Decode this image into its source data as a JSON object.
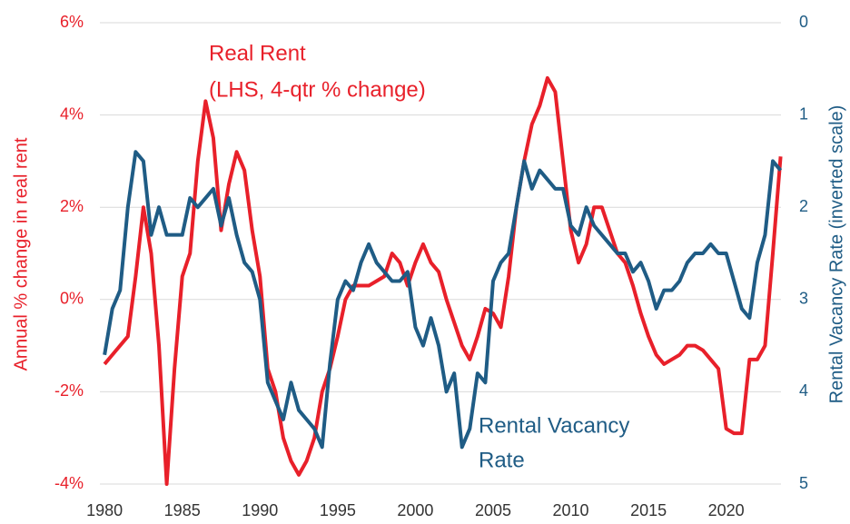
{
  "chart_data": {
    "type": "line",
    "annotations": [
      "Real Rent",
      "(LHS, 4-qtr % change)",
      "Rental Vacancy",
      "Rate"
    ],
    "ylabel": "Annual % change in real rent",
    "y2label": "Rental Vacancy Rate (inverted scale)",
    "x": [
      1980,
      1980.5,
      1981,
      1981.5,
      1982,
      1982.5,
      1983,
      1983.5,
      1984,
      1984.5,
      1985,
      1985.5,
      1986,
      1986.5,
      1987,
      1987.5,
      1988,
      1988.5,
      1989,
      1989.5,
      1990,
      1990.5,
      1991,
      1991.5,
      1992,
      1992.5,
      1993,
      1993.5,
      1994,
      1994.5,
      1995,
      1995.5,
      1996,
      1996.5,
      1997,
      1997.5,
      1998,
      1998.5,
      1999,
      1999.5,
      2000,
      2000.5,
      2001,
      2001.5,
      2002,
      2002.5,
      2003,
      2003.5,
      2004,
      2004.5,
      2005,
      2005.5,
      2006,
      2006.5,
      2007,
      2007.5,
      2008,
      2008.5,
      2009,
      2009.5,
      2010,
      2010.5,
      2011,
      2011.5,
      2012,
      2012.5,
      2013,
      2013.5,
      2014,
      2014.5,
      2015,
      2015.5,
      2016,
      2016.5,
      2017,
      2017.5,
      2018,
      2018.5,
      2019,
      2019.5,
      2020,
      2020.5,
      2021,
      2021.5,
      2022,
      2022.5,
      2023,
      2023.5
    ],
    "series": [
      {
        "name": "Real Rent",
        "color": "#e8202a",
        "axis": "y",
        "values": [
          -1.4,
          -1.2,
          -1.0,
          -0.8,
          0.5,
          2.0,
          1.0,
          -1.0,
          -4.0,
          -1.5,
          0.5,
          1.0,
          3.0,
          4.3,
          3.5,
          1.5,
          2.5,
          3.2,
          2.8,
          1.5,
          0.5,
          -1.5,
          -2.0,
          -3.0,
          -3.5,
          -3.8,
          -3.5,
          -3.0,
          -2.0,
          -1.5,
          -0.8,
          0.0,
          0.3,
          0.3,
          0.3,
          0.4,
          0.5,
          1.0,
          0.8,
          0.3,
          0.8,
          1.2,
          0.8,
          0.6,
          0.0,
          -0.5,
          -1.0,
          -1.3,
          -0.8,
          -0.2,
          -0.3,
          -0.6,
          0.5,
          2.0,
          3.0,
          3.8,
          4.2,
          4.8,
          4.5,
          3.0,
          1.5,
          0.8,
          1.2,
          2.0,
          2.0,
          1.5,
          1.0,
          0.8,
          0.3,
          -0.3,
          -0.8,
          -1.2,
          -1.4,
          -1.3,
          -1.2,
          -1.0,
          -1.0,
          -1.1,
          -1.3,
          -1.5,
          -2.8,
          -2.9,
          -2.9,
          -1.3,
          -1.3,
          -1.0,
          1.0,
          3.1
        ]
      },
      {
        "name": "Rental Vacancy Rate",
        "color": "#1f5c85",
        "axis": "y2",
        "values": [
          3.6,
          3.1,
          2.9,
          2.0,
          1.4,
          1.5,
          2.3,
          2.0,
          2.3,
          2.3,
          2.3,
          1.9,
          2.0,
          1.9,
          1.8,
          2.2,
          1.9,
          2.3,
          2.6,
          2.7,
          3.0,
          3.9,
          4.1,
          4.3,
          3.9,
          4.2,
          4.3,
          4.4,
          4.6,
          3.7,
          3.0,
          2.8,
          2.9,
          2.6,
          2.4,
          2.6,
          2.7,
          2.8,
          2.8,
          2.7,
          3.3,
          3.5,
          3.2,
          3.5,
          4.0,
          3.8,
          4.6,
          4.4,
          3.8,
          3.9,
          2.8,
          2.6,
          2.5,
          2.0,
          1.5,
          1.8,
          1.6,
          1.7,
          1.8,
          1.8,
          2.2,
          2.3,
          2.0,
          2.2,
          2.3,
          2.4,
          2.5,
          2.5,
          2.7,
          2.6,
          2.8,
          3.1,
          2.9,
          2.9,
          2.8,
          2.6,
          2.5,
          2.5,
          2.4,
          2.5,
          2.5,
          2.8,
          3.1,
          3.2,
          2.6,
          2.3,
          1.5,
          1.6
        ]
      }
    ],
    "xlim": [
      1979.7,
      2023.7
    ],
    "xticks": [
      1980,
      1985,
      1990,
      1995,
      2000,
      2005,
      2010,
      2015,
      2020
    ],
    "ylim": [
      -4,
      6
    ],
    "yticks": [
      {
        "value": -4,
        "label": "-4%"
      },
      {
        "value": -2,
        "label": "-2%"
      },
      {
        "value": 0,
        "label": "0%"
      },
      {
        "value": 2,
        "label": "2%"
      },
      {
        "value": 4,
        "label": "4%"
      },
      {
        "value": 6,
        "label": "6%"
      }
    ],
    "y2lim": [
      5,
      0
    ],
    "y2ticks": [
      0,
      1,
      2,
      3,
      4,
      5
    ],
    "grid": true
  }
}
